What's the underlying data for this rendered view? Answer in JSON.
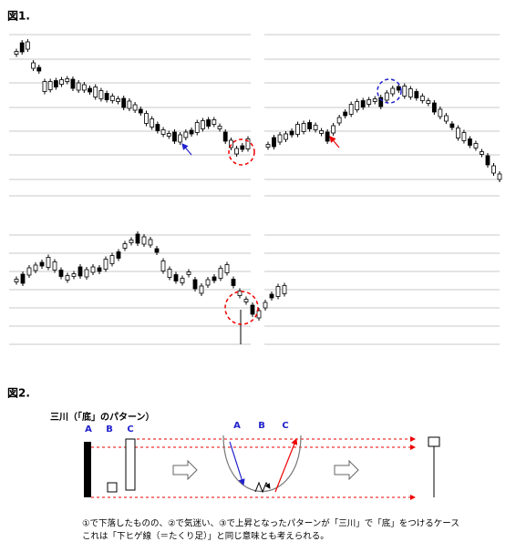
{
  "figure1": {
    "label": "図1."
  },
  "figure2": {
    "label": "図2.",
    "title": "三川（「底」のパターン）",
    "candle_labels": [
      "A",
      "B",
      "C"
    ],
    "curve_labels": [
      "A",
      "B",
      "C"
    ],
    "caption": [
      "①で下落したものの、②で気迷い、③で上昇となったパターンが「三川」で「底」をつけるケース",
      "これは「下ヒゲ線（＝たくり足）」と同じ意味とも考えられる。"
    ]
  }
}
